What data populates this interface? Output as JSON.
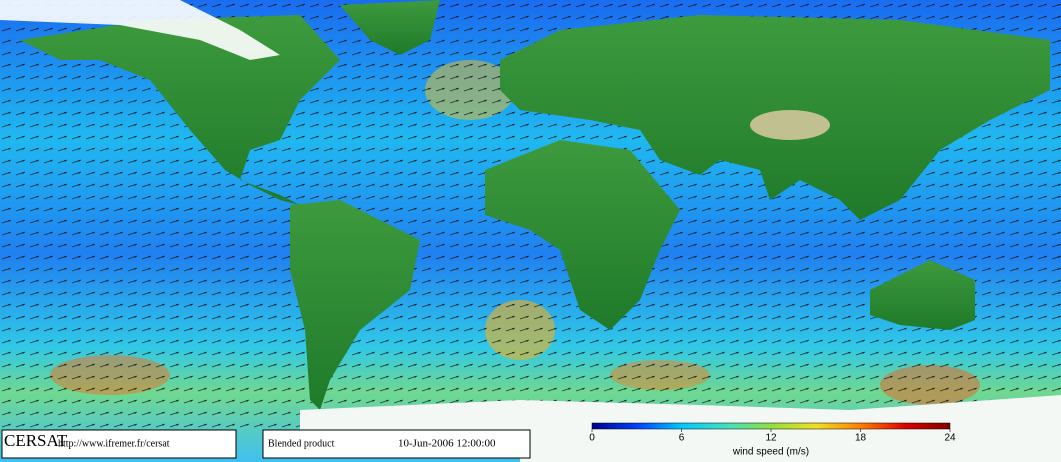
{
  "footer": {
    "brand": "CERSAT",
    "url": "http://www.ifremer.fr/cersat",
    "product": "Blended product",
    "timestamp": "10-Jun-2006 12:00:00"
  },
  "colorbar": {
    "label": "wind speed (m/s)",
    "lim": [
      0,
      24
    ],
    "ticks": [
      0,
      6,
      12,
      18,
      24
    ],
    "colors": [
      "#00008b",
      "#0040ff",
      "#00c8ff",
      "#40e0c0",
      "#90e040",
      "#f0e020",
      "#ff8000",
      "#e00000",
      "#800000"
    ]
  }
}
